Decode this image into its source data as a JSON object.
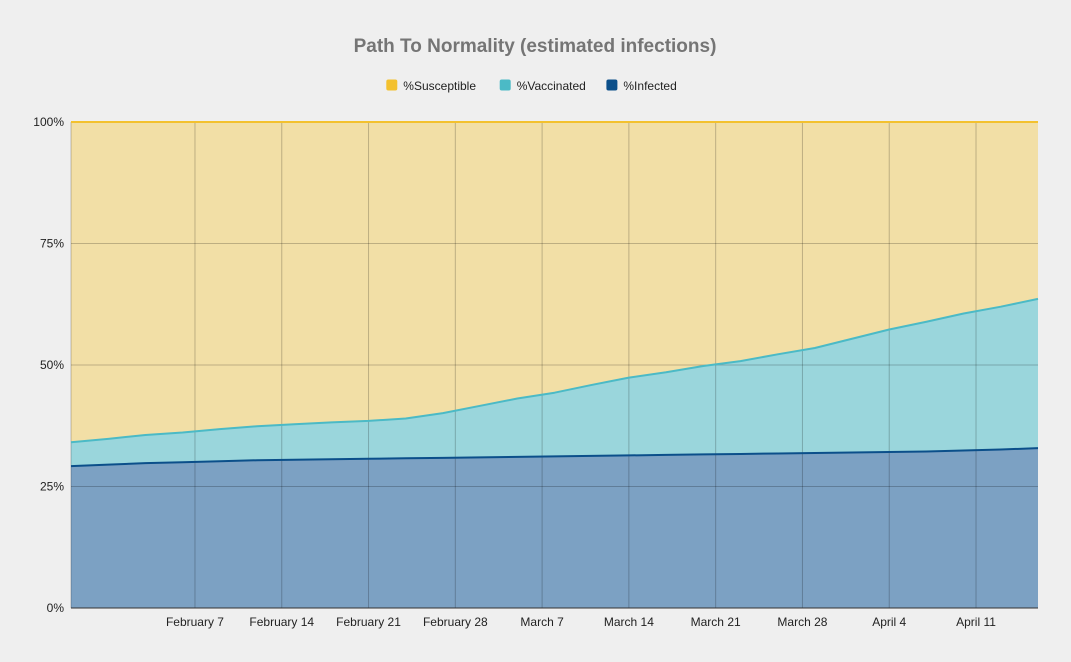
{
  "chart_data": {
    "type": "area",
    "stacked": true,
    "title": "Path To Normality (estimated infections)",
    "xlabel": "",
    "ylabel": "",
    "ylim": [
      0,
      100
    ],
    "yticks": [
      "0%",
      "25%",
      "50%",
      "75%",
      "100%"
    ],
    "ytick_values": [
      0,
      25,
      50,
      75,
      100
    ],
    "x_start": "2021-01-28",
    "x_end": "2021-04-16",
    "xticks": [
      {
        "date": "2021-02-07",
        "label": "February 7"
      },
      {
        "date": "2021-02-14",
        "label": "February 14"
      },
      {
        "date": "2021-02-21",
        "label": "February 21"
      },
      {
        "date": "2021-02-28",
        "label": "February 28"
      },
      {
        "date": "2021-03-07",
        "label": "March 7"
      },
      {
        "date": "2021-03-14",
        "label": "March 14"
      },
      {
        "date": "2021-03-21",
        "label": "March 21"
      },
      {
        "date": "2021-03-28",
        "label": "March 28"
      },
      {
        "date": "2021-04-04",
        "label": "April 4"
      },
      {
        "date": "2021-04-11",
        "label": "April 11"
      }
    ],
    "grid": true,
    "legend_position": "top",
    "x": [
      "2021-01-28",
      "2021-01-31",
      "2021-02-03",
      "2021-02-06",
      "2021-02-09",
      "2021-02-12",
      "2021-02-15",
      "2021-02-18",
      "2021-02-21",
      "2021-02-24",
      "2021-02-27",
      "2021-03-02",
      "2021-03-05",
      "2021-03-08",
      "2021-03-11",
      "2021-03-14",
      "2021-03-17",
      "2021-03-20",
      "2021-03-23",
      "2021-03-26",
      "2021-03-29",
      "2021-04-01",
      "2021-04-04",
      "2021-04-07",
      "2021-04-10",
      "2021-04-13",
      "2021-04-16"
    ],
    "series": [
      {
        "name": "%Infected",
        "color": "#0b4f8a",
        "fill": "#7ca1c3",
        "values": [
          29.2,
          29.5,
          29.8,
          30.0,
          30.2,
          30.4,
          30.5,
          30.6,
          30.7,
          30.8,
          30.9,
          31.0,
          31.1,
          31.2,
          31.3,
          31.4,
          31.5,
          31.6,
          31.7,
          31.8,
          31.9,
          32.0,
          32.1,
          32.2,
          32.4,
          32.6,
          32.9
        ]
      },
      {
        "name": "%Vaccinated",
        "color": "#4bbac6",
        "fill": "#9ad6dc",
        "values": [
          4.9,
          5.3,
          5.8,
          6.1,
          6.6,
          7.0,
          7.3,
          7.6,
          7.8,
          8.2,
          9.2,
          10.6,
          12.0,
          13.1,
          14.6,
          16.0,
          17.0,
          18.2,
          19.1,
          20.4,
          21.6,
          23.4,
          25.2,
          26.7,
          28.2,
          29.4,
          30.7
        ]
      },
      {
        "name": "%Susceptible",
        "color": "#f3c12e",
        "fill": "#f2dfa6",
        "values": [
          65.9,
          65.2,
          64.4,
          63.9,
          63.2,
          62.6,
          62.2,
          61.8,
          61.5,
          61.0,
          59.9,
          58.4,
          56.9,
          55.7,
          54.1,
          52.6,
          51.5,
          50.2,
          49.2,
          47.8,
          46.5,
          44.6,
          42.7,
          41.1,
          39.4,
          38.0,
          36.4
        ]
      }
    ],
    "legend": [
      {
        "name": "%Susceptible",
        "color": "#f3c12e"
      },
      {
        "name": "%Vaccinated",
        "color": "#4bbac6"
      },
      {
        "name": "%Infected",
        "color": "#0b4f8a"
      }
    ]
  }
}
